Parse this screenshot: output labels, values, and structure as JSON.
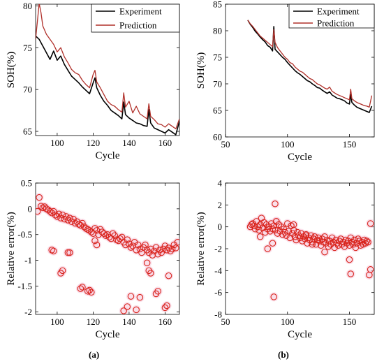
{
  "colors": {
    "experiment": "#000000",
    "prediction": "#b0302a",
    "error_marker": "#d9241c",
    "error_glow": "#f6c6d8"
  },
  "captions": {
    "a": "(a)",
    "b": "(b)"
  },
  "chart_data": [
    {
      "id": "a-top",
      "type": "line",
      "xlabel": "Cycle",
      "ylabel": "SOH(%)",
      "xlim": [
        88,
        168
      ],
      "ylim": [
        64.5,
        80.2
      ],
      "xticks": [
        100,
        120,
        140,
        160
      ],
      "yticks": [
        65,
        70,
        75,
        80
      ],
      "legend": "top-right",
      "series": [
        {
          "name": "Experiment",
          "color": "#000000",
          "x": [
            88,
            90,
            92,
            94,
            96,
            98,
            100,
            102,
            104,
            106,
            108,
            110,
            112,
            114,
            116,
            118,
            120,
            121,
            122,
            124,
            126,
            128,
            130,
            132,
            134,
            136,
            137,
            138,
            140,
            142,
            144,
            146,
            148,
            150,
            151,
            152,
            154,
            156,
            158,
            160,
            162,
            164,
            166,
            168
          ],
          "y": [
            76.4,
            76.0,
            75.2,
            74.4,
            73.6,
            74.6,
            73.5,
            74.0,
            73.0,
            72.3,
            71.6,
            71.2,
            70.8,
            70.3,
            69.9,
            69.5,
            70.8,
            71.4,
            70.2,
            69.3,
            68.6,
            68.1,
            67.5,
            67.2,
            66.9,
            66.5,
            68.5,
            67.0,
            66.6,
            66.3,
            66.0,
            65.9,
            65.7,
            65.6,
            67.6,
            66.0,
            65.4,
            65.2,
            65.0,
            64.8,
            65.2,
            64.9,
            64.6,
            66.2
          ]
        },
        {
          "name": "Prediction",
          "color": "#b0302a",
          "x": [
            88,
            90,
            91,
            92,
            94,
            96,
            98,
            100,
            102,
            104,
            106,
            108,
            110,
            112,
            114,
            116,
            118,
            120,
            121,
            122,
            124,
            126,
            128,
            130,
            132,
            134,
            136,
            137,
            138,
            140,
            142,
            144,
            146,
            148,
            150,
            151,
            152,
            154,
            156,
            158,
            160,
            162,
            164,
            166,
            168
          ],
          "y": [
            76.0,
            80.3,
            79.2,
            77.6,
            76.6,
            76.0,
            75.4,
            74.5,
            75.0,
            73.9,
            73.2,
            72.4,
            72.0,
            71.8,
            71.1,
            70.6,
            70.2,
            71.8,
            72.3,
            70.9,
            70.2,
            69.4,
            68.6,
            68.2,
            68.0,
            67.6,
            67.3,
            69.6,
            67.9,
            68.6,
            67.2,
            68.0,
            67.1,
            66.8,
            66.5,
            68.3,
            66.8,
            66.4,
            65.9,
            65.8,
            65.5,
            65.9,
            65.6,
            65.3,
            66.5
          ]
        }
      ]
    },
    {
      "id": "b-top",
      "type": "line",
      "xlabel": "Cycle",
      "ylabel": "SOH(%)",
      "xlim": [
        50,
        170
      ],
      "ylim": [
        60,
        85
      ],
      "xticks": [
        50,
        100,
        150
      ],
      "yticks": [
        60,
        65,
        70,
        75,
        80,
        85
      ],
      "legend": "top-right",
      "series": [
        {
          "name": "Experiment",
          "color": "#000000",
          "x": [
            68,
            70,
            72,
            74,
            76,
            78,
            80,
            82,
            84,
            86,
            88,
            89,
            90,
            92,
            94,
            96,
            98,
            100,
            102,
            104,
            106,
            108,
            110,
            112,
            114,
            116,
            118,
            120,
            122,
            124,
            126,
            128,
            130,
            132,
            134,
            136,
            138,
            140,
            142,
            144,
            146,
            148,
            150,
            151,
            152,
            154,
            156,
            158,
            160,
            162,
            164,
            166,
            168
          ],
          "y": [
            82.0,
            81.2,
            80.6,
            79.9,
            79.4,
            78.8,
            78.3,
            77.9,
            77.2,
            76.9,
            76.2,
            80.8,
            76.5,
            76.0,
            75.5,
            75.0,
            74.6,
            74.0,
            73.5,
            73.0,
            72.5,
            72.1,
            71.8,
            71.4,
            71.0,
            70.6,
            70.4,
            70.0,
            69.7,
            69.3,
            69.2,
            68.8,
            68.5,
            68.2,
            68.5,
            67.9,
            67.6,
            67.3,
            67.2,
            67.0,
            66.8,
            66.4,
            66.2,
            68.0,
            66.5,
            66.0,
            65.6,
            65.4,
            65.2,
            65.0,
            64.8,
            64.6,
            65.8
          ]
        },
        {
          "name": "Prediction",
          "color": "#b0302a",
          "x": [
            68,
            70,
            72,
            74,
            76,
            78,
            80,
            82,
            84,
            86,
            88,
            89,
            90,
            92,
            94,
            96,
            98,
            100,
            102,
            104,
            106,
            108,
            110,
            112,
            114,
            116,
            118,
            120,
            122,
            124,
            126,
            128,
            130,
            132,
            134,
            136,
            138,
            140,
            142,
            144,
            146,
            148,
            150,
            151,
            152,
            154,
            156,
            158,
            160,
            162,
            164,
            166,
            168
          ],
          "y": [
            82.0,
            81.3,
            80.8,
            80.2,
            79.6,
            79.0,
            78.6,
            78.2,
            77.8,
            77.4,
            77.0,
            80.2,
            77.8,
            76.8,
            76.2,
            75.6,
            75.0,
            74.6,
            74.0,
            73.8,
            73.2,
            72.8,
            72.4,
            72.2,
            71.8,
            71.4,
            71.0,
            70.8,
            70.4,
            70.0,
            69.8,
            69.5,
            69.2,
            69.0,
            69.4,
            68.6,
            68.3,
            68.0,
            67.8,
            67.6,
            67.4,
            67.2,
            67.0,
            69.0,
            67.2,
            66.8,
            66.5,
            66.3,
            66.1,
            65.9,
            65.8,
            65.6,
            67.8
          ]
        }
      ]
    },
    {
      "id": "a-bottom",
      "type": "scatter",
      "xlabel": "Cycle",
      "ylabel": "Relative error(%)",
      "xlim": [
        88,
        168
      ],
      "ylim": [
        -2.05,
        0.5
      ],
      "xticks": [
        100,
        120,
        140,
        160
      ],
      "yticks": [
        0.5,
        0,
        -0.5,
        -1,
        -1.5,
        -2
      ],
      "ytick_labels": [
        "0.5",
        "0",
        "-0.5",
        "-1",
        "-1.5",
        "-2"
      ],
      "marker": "open-circle",
      "color": "#d9241c",
      "x": [
        89,
        90,
        91,
        92,
        93,
        94,
        95,
        96,
        97,
        98,
        99,
        100,
        101,
        102,
        103,
        104,
        105,
        106,
        107,
        108,
        109,
        110,
        111,
        112,
        113,
        114,
        115,
        116,
        117,
        118,
        119,
        120,
        121,
        122,
        123,
        124,
        125,
        126,
        127,
        128,
        129,
        130,
        131,
        132,
        133,
        134,
        135,
        136,
        137,
        138,
        139,
        140,
        141,
        142,
        143,
        144,
        145,
        146,
        147,
        148,
        149,
        150,
        151,
        152,
        153,
        154,
        155,
        156,
        157,
        158,
        159,
        160,
        161,
        162,
        163,
        164,
        165,
        166,
        167,
        97,
        98,
        102,
        103,
        106,
        107,
        113,
        114,
        117,
        118,
        119,
        121,
        122,
        137,
        139,
        141,
        144,
        146,
        151,
        152,
        156,
        160,
        161,
        162,
        150,
        155
      ],
      "y": [
        -0.05,
        0.22,
        0.05,
        0.02,
        0.04,
        0.0,
        -0.02,
        -0.05,
        -0.08,
        -0.05,
        -0.12,
        -0.15,
        -0.1,
        -0.18,
        -0.12,
        -0.2,
        -0.15,
        -0.22,
        -0.18,
        -0.25,
        -0.2,
        -0.28,
        -0.25,
        -0.3,
        -0.32,
        -0.28,
        -0.35,
        -0.38,
        -0.4,
        -0.42,
        -0.45,
        -0.48,
        -0.38,
        -0.42,
        -0.5,
        -0.4,
        -0.45,
        -0.48,
        -0.52,
        -0.5,
        -0.55,
        -0.58,
        -0.48,
        -0.52,
        -0.6,
        -0.62,
        -0.58,
        -0.55,
        -0.65,
        -0.7,
        -0.6,
        -0.68,
        -0.75,
        -0.72,
        -0.65,
        -0.8,
        -0.7,
        -0.78,
        -0.85,
        -0.75,
        -0.7,
        -0.8,
        -0.85,
        -0.78,
        -0.9,
        -0.82,
        -0.75,
        -0.88,
        -0.8,
        -0.85,
        -0.78,
        -0.72,
        -0.8,
        -0.76,
        -0.82,
        -0.78,
        -0.7,
        -0.76,
        -0.65,
        -0.8,
        -0.82,
        -1.25,
        -1.2,
        -0.85,
        -0.85,
        -1.55,
        -1.52,
        -1.6,
        -1.58,
        -1.62,
        -0.62,
        -0.7,
        -1.98,
        -1.9,
        -1.7,
        -1.96,
        -1.72,
        -1.2,
        -1.25,
        -1.6,
        -1.92,
        -1.88,
        -1.3,
        -1.05,
        -1.65
      ]
    },
    {
      "id": "b-bottom",
      "type": "scatter",
      "xlabel": "Cycle",
      "ylabel": "Relative error(%)",
      "xlim": [
        50,
        170
      ],
      "ylim": [
        -8,
        4
      ],
      "xticks": [
        50,
        100,
        150
      ],
      "yticks": [
        4,
        2,
        0,
        -2,
        -4,
        -6,
        -8
      ],
      "marker": "open-circle",
      "color": "#d9241c",
      "x": [
        70,
        71,
        72,
        73,
        74,
        75,
        76,
        77,
        78,
        79,
        80,
        81,
        82,
        83,
        84,
        85,
        86,
        87,
        88,
        89,
        90,
        91,
        92,
        93,
        94,
        95,
        96,
        97,
        98,
        99,
        100,
        101,
        102,
        103,
        104,
        105,
        106,
        107,
        108,
        109,
        110,
        111,
        112,
        113,
        114,
        115,
        116,
        117,
        118,
        119,
        120,
        121,
        122,
        123,
        124,
        125,
        126,
        127,
        128,
        129,
        130,
        131,
        132,
        133,
        134,
        135,
        136,
        137,
        138,
        139,
        140,
        141,
        142,
        143,
        144,
        145,
        146,
        147,
        148,
        149,
        150,
        151,
        152,
        153,
        154,
        155,
        156,
        157,
        158,
        159,
        160,
        161,
        162,
        163,
        164,
        165,
        166,
        167,
        89,
        90,
        91,
        78,
        84,
        120,
        130,
        150,
        151,
        167,
        88,
        105,
        115
      ],
      "y": [
        0.0,
        0.2,
        0.3,
        0.1,
        -0.2,
        0.5,
        0.0,
        -0.3,
        0.2,
        0.8,
        -0.1,
        0.4,
        -0.5,
        0.2,
        -0.2,
        0.0,
        -0.4,
        0.3,
        -0.2,
        0.1,
        -0.3,
        0.5,
        -0.6,
        0.2,
        -0.4,
        0.0,
        -0.7,
        -0.2,
        -0.5,
        -0.8,
        0.3,
        -0.4,
        -1.0,
        0.1,
        -0.6,
        -0.3,
        -0.9,
        -1.2,
        -0.5,
        -0.8,
        -1.0,
        -0.6,
        -1.3,
        -0.9,
        -1.1,
        -0.7,
        -1.5,
        -1.0,
        -1.2,
        -0.8,
        -1.4,
        -1.1,
        -0.9,
        -1.6,
        -1.2,
        -1.0,
        -1.3,
        -1.7,
        -1.1,
        -1.4,
        -0.9,
        -1.5,
        -1.2,
        -1.8,
        -1.3,
        -1.6,
        -1.0,
        -1.4,
        -1.9,
        -1.2,
        -1.5,
        -1.7,
        -1.3,
        -1.1,
        -1.6,
        -1.4,
        -1.8,
        -1.2,
        -1.5,
        -1.3,
        -1.7,
        -1.0,
        -1.4,
        -1.6,
        -1.2,
        -1.9,
        -1.5,
        -1.1,
        -1.3,
        -1.7,
        -1.4,
        -1.6,
        -1.2,
        -1.5,
        -1.3,
        -1.4,
        -4.4,
        -3.9,
        -6.4,
        2.1,
        0.5,
        -0.9,
        -2.0,
        -1.6,
        -2.3,
        -3.0,
        -4.3,
        0.3,
        -1.5,
        0.2,
        -0.8
      ]
    }
  ]
}
